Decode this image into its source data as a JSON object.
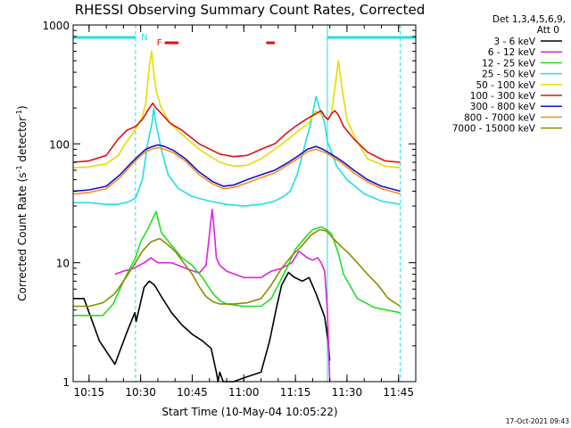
{
  "chart_data": {
    "type": "line",
    "title": "RHESSI Observing Summary Count Rates, Corrected",
    "xlabel": "Start Time (10-May-04 10:05:22)",
    "ylabel": "Corrected Count Rate (s",
    "ylabel_sup": "-1",
    "ylabel_tail": " detector",
    "ylabel_close": ")",
    "timestamp": "17-Oct-2021 09:43",
    "y_scale": "log",
    "ylim": [
      1,
      1000
    ],
    "xlim_minutes": [
      5.37,
      105
    ],
    "x_tick_minutes": [
      10,
      25,
      40,
      55,
      70,
      85,
      100
    ],
    "x_ticks": [
      "10:15",
      "10:30",
      "10:45",
      "11:00",
      "11:15",
      "11:30",
      "11:45"
    ],
    "y_tick_values": [
      1,
      10,
      100,
      1000
    ],
    "y_ticks": [
      "1",
      "10",
      "100",
      "1000"
    ],
    "grid": false,
    "legend_header": [
      "Det 1,3,4,5,6,9,",
      "Att 0"
    ],
    "legend_position": "right",
    "annotations": {
      "night_label": "N",
      "flare_label": "F",
      "night_intervals_minutes": [
        [
          5.37,
          23.5
        ],
        [
          79.3,
          105
        ]
      ],
      "saa_lines_minutes": [
        5.37,
        23.5,
        79.3,
        100.5
      ],
      "flare_intervals_minutes": [
        [
          32,
          36
        ],
        [
          61.5,
          64
        ]
      ]
    },
    "series": [
      {
        "name": "3 - 6 keV",
        "color": "#000000",
        "x": [
          5.37,
          8.5,
          13,
          17.5,
          21,
          23.3,
          23.7,
          26,
          27.5,
          29,
          31,
          34,
          37,
          40,
          43,
          45.5,
          47,
          47.5,
          48,
          49,
          52,
          56,
          60,
          62.5,
          64.5,
          66,
          68,
          69.5,
          72,
          74,
          76,
          77.5,
          78.5,
          79.5,
          80
        ],
        "y": [
          5,
          5,
          2.2,
          1.4,
          2.6,
          3.8,
          3.2,
          6.2,
          7,
          6.5,
          5.2,
          3.8,
          3,
          2.5,
          2.2,
          1.9,
          1.2,
          1,
          1.2,
          1,
          1,
          1.1,
          1.2,
          2.2,
          4.2,
          6.5,
          8.3,
          7.6,
          7,
          7.5,
          5.5,
          4.2,
          3.5,
          2.2,
          1.5
        ]
      },
      {
        "name": "6 - 12 keV",
        "color": "#e020e0",
        "x": [
          17.5,
          20,
          23,
          26,
          28,
          30,
          34,
          38,
          42,
          44,
          45.8,
          46.3,
          47,
          48,
          50,
          55,
          60,
          63,
          66,
          69,
          71,
          73.5,
          75,
          76.5,
          77.5,
          78.5,
          79.3,
          80
        ],
        "y": [
          8,
          8.5,
          9,
          10,
          11,
          10,
          10,
          9,
          8.2,
          9.5,
          28,
          20,
          11,
          9.5,
          8.5,
          7.5,
          7.5,
          8.5,
          9,
          10,
          12.5,
          11,
          10.5,
          11,
          10,
          8.5,
          4,
          1
        ]
      },
      {
        "name": "12 - 25 keV",
        "color": "#20e020",
        "x": [
          5.37,
          10,
          14,
          17,
          19,
          21,
          23.5,
          25,
          27,
          29.5,
          31,
          34,
          37,
          40,
          43,
          46,
          48,
          50,
          55,
          60,
          63,
          65,
          67.5,
          70,
          73,
          75,
          77.5,
          79,
          80.5,
          82.5,
          84,
          88,
          93,
          100.5
        ],
        "y": [
          3.6,
          3.6,
          3.6,
          4.5,
          6,
          8,
          11,
          15,
          19,
          27,
          18,
          14,
          11,
          9.5,
          7.5,
          5.5,
          4.8,
          4.5,
          4.3,
          4.3,
          5,
          6.5,
          9,
          13,
          16.5,
          19,
          20,
          19,
          17.5,
          12,
          8,
          5,
          4.2,
          3.8
        ]
      },
      {
        "name": "25 - 50 keV",
        "color": "#20e0e0",
        "x": [
          5.37,
          10,
          15,
          18,
          20.5,
          22,
          23.5,
          25.5,
          27,
          28.3,
          28.8,
          29.5,
          31,
          33,
          36,
          40,
          45,
          50,
          55,
          60,
          64,
          66.5,
          68.5,
          70.5,
          72,
          73.2,
          74.5,
          76,
          77,
          78.5,
          79.3,
          80.5,
          82,
          85,
          90,
          95,
          100.5
        ],
        "y": [
          32,
          32,
          31,
          31,
          32,
          33,
          35,
          50,
          100,
          150,
          200,
          145,
          90,
          55,
          42,
          36,
          33,
          31,
          30,
          31,
          33,
          36,
          40,
          55,
          80,
          110,
          150,
          250,
          200,
          150,
          105,
          85,
          65,
          50,
          38,
          33,
          31
        ]
      },
      {
        "name": "50 - 100 keV",
        "color": "#e0e000",
        "x": [
          5.37,
          10,
          15,
          18.5,
          20.5,
          22.5,
          24,
          25.5,
          26.5,
          27.5,
          28.2,
          28.8,
          29.5,
          31,
          33.5,
          37,
          42,
          48,
          52,
          56,
          60,
          64,
          68,
          71,
          74,
          75.8,
          77,
          78.5,
          79.5,
          80.5,
          81.5,
          82.5,
          83.5,
          85,
          87.5,
          91,
          96,
          100.5
        ],
        "y": [
          63,
          64,
          68,
          80,
          100,
          120,
          140,
          170,
          220,
          450,
          600,
          400,
          280,
          200,
          150,
          120,
          90,
          70,
          65,
          66,
          75,
          90,
          110,
          130,
          150,
          190,
          180,
          170,
          160,
          180,
          300,
          500,
          300,
          160,
          110,
          75,
          65,
          63
        ]
      },
      {
        "name": "100 - 300 keV",
        "color": "#e01010",
        "x": [
          5.37,
          10,
          15,
          18.5,
          21,
          23.5,
          25.5,
          27,
          28.5,
          29.5,
          31,
          33.5,
          37,
          42,
          48,
          52,
          56,
          60,
          64,
          67,
          70,
          73,
          76,
          77.5,
          78.5,
          79.5,
          80.5,
          81.5,
          82.5,
          84,
          87,
          91,
          96,
          100.5
        ],
        "y": [
          70,
          72,
          80,
          110,
          130,
          140,
          160,
          190,
          220,
          200,
          180,
          150,
          130,
          100,
          82,
          78,
          80,
          90,
          100,
          120,
          140,
          160,
          180,
          190,
          170,
          160,
          180,
          190,
          175,
          140,
          110,
          85,
          72,
          70
        ]
      },
      {
        "name": "300 - 800 keV",
        "color": "#1010d0",
        "x": [
          5.37,
          10,
          15,
          19,
          22,
          24.5,
          26.5,
          28.5,
          30,
          32,
          34.5,
          38,
          42,
          46,
          49,
          52,
          56,
          60,
          64,
          68,
          71,
          73.5,
          76,
          78,
          79.5,
          81,
          82.5,
          84,
          87,
          91,
          95,
          100.5
        ],
        "y": [
          40,
          41,
          44,
          55,
          68,
          80,
          90,
          95,
          98,
          95,
          88,
          75,
          58,
          48,
          44,
          45,
          50,
          55,
          60,
          70,
          80,
          90,
          95,
          90,
          85,
          80,
          75,
          70,
          60,
          50,
          44,
          40
        ]
      },
      {
        "name": "800 - 7000 keV",
        "color": "#ff8c1a",
        "x": [
          5.37,
          10,
          15,
          19,
          22,
          24.5,
          26.5,
          28.5,
          30,
          32,
          34.5,
          38,
          42,
          46,
          49,
          52,
          56,
          60,
          64,
          68,
          71,
          73.5,
          76,
          78,
          79.5,
          81,
          82.5,
          84,
          87,
          91,
          95,
          100.5
        ],
        "y": [
          38,
          39,
          42,
          52,
          65,
          77,
          86,
          91,
          93,
          90,
          84,
          72,
          55,
          46,
          42,
          43,
          47,
          52,
          57,
          67,
          76,
          86,
          90,
          86,
          82,
          77,
          72,
          67,
          57,
          48,
          42,
          38
        ]
      },
      {
        "name": "7000 - 15000 keV",
        "color": "#8c8c00",
        "x": [
          5.37,
          10,
          14,
          17.5,
          20,
          23,
          25.5,
          28,
          30.5,
          32.5,
          35,
          37.5,
          40,
          42,
          44,
          46,
          48,
          52,
          56,
          60,
          63,
          66,
          69,
          72,
          74.5,
          77,
          79,
          81,
          83,
          85.5,
          88,
          91,
          94,
          97,
          100.5
        ],
        "y": [
          4.3,
          4.3,
          4.6,
          5.5,
          7,
          9.5,
          12.5,
          15,
          16,
          14.5,
          12.5,
          10,
          8,
          6.3,
          5.2,
          4.7,
          4.5,
          4.5,
          4.6,
          5,
          6.5,
          9,
          11.5,
          14,
          17,
          19,
          18.5,
          16,
          14,
          12,
          10,
          8,
          6.5,
          5,
          4.3
        ]
      }
    ]
  }
}
